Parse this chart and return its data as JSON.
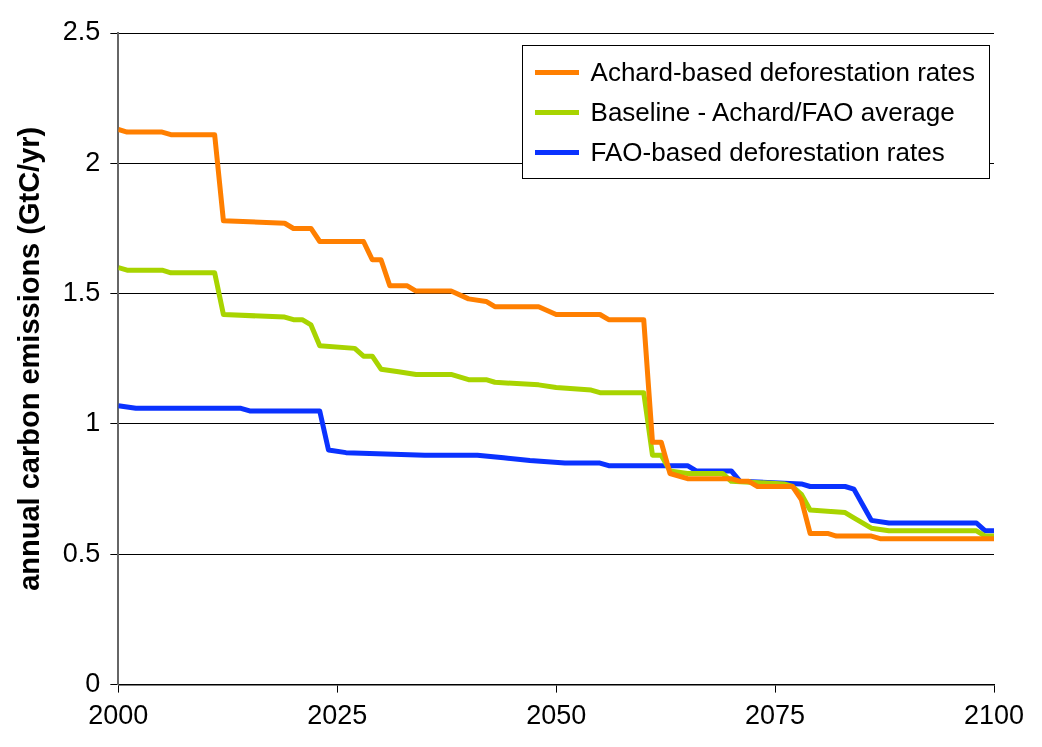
{
  "chart_data": {
    "type": "line",
    "ylabel": "annual carbon emissions (GtC/yr)",
    "xlim": [
      2000,
      2100
    ],
    "xticks": [
      2000,
      2025,
      2050,
      2075,
      2100
    ],
    "ylim": [
      0,
      2.5
    ],
    "yticks": [
      0,
      0.5,
      1,
      1.5,
      2,
      2.5
    ],
    "grid": "y",
    "legend": "top right",
    "marker": "none",
    "line_style": "solid",
    "series": [
      {
        "name": "Achard-based deforestation rates",
        "color": "#ff7f00",
        "x": [
          2000,
          2001,
          2005,
          2006,
          2011,
          2012,
          2019,
          2020,
          2022,
          2023,
          2028,
          2029,
          2030,
          2031,
          2033,
          2034,
          2038,
          2040,
          2042,
          2043,
          2048,
          2050,
          2055,
          2056,
          2060,
          2061,
          2062,
          2063,
          2065,
          2070,
          2071,
          2072,
          2073,
          2077,
          2078,
          2079,
          2081,
          2082,
          2086,
          2087,
          2100
        ],
        "values": [
          2.13,
          2.12,
          2.12,
          2.11,
          2.11,
          1.78,
          1.77,
          1.75,
          1.75,
          1.7,
          1.7,
          1.63,
          1.63,
          1.53,
          1.53,
          1.51,
          1.51,
          1.48,
          1.47,
          1.45,
          1.45,
          1.42,
          1.42,
          1.4,
          1.4,
          0.93,
          0.93,
          0.81,
          0.79,
          0.79,
          0.78,
          0.78,
          0.76,
          0.76,
          0.71,
          0.58,
          0.58,
          0.57,
          0.57,
          0.56,
          0.56
        ]
      },
      {
        "name": "Baseline - Achard/FAO average",
        "color": "#a8d400",
        "x": [
          2000,
          2001,
          2005,
          2006,
          2011,
          2012,
          2019,
          2020,
          2021,
          2022,
          2023,
          2027,
          2028,
          2029,
          2030,
          2032,
          2034,
          2038,
          2040,
          2042,
          2043,
          2048,
          2050,
          2054,
          2055,
          2060,
          2061,
          2062,
          2063,
          2065,
          2069,
          2070,
          2076,
          2077,
          2078,
          2079,
          2083,
          2084,
          2086,
          2088,
          2098,
          2099,
          2100
        ],
        "values": [
          1.6,
          1.59,
          1.59,
          1.58,
          1.58,
          1.42,
          1.41,
          1.4,
          1.4,
          1.38,
          1.3,
          1.29,
          1.26,
          1.26,
          1.21,
          1.2,
          1.19,
          1.19,
          1.17,
          1.17,
          1.16,
          1.15,
          1.14,
          1.13,
          1.12,
          1.12,
          0.88,
          0.88,
          0.82,
          0.81,
          0.81,
          0.78,
          0.77,
          0.76,
          0.73,
          0.67,
          0.66,
          0.64,
          0.6,
          0.59,
          0.59,
          0.57,
          0.57
        ]
      },
      {
        "name": "FAO-based deforestation rates",
        "color": "#0a32ff",
        "x": [
          2000,
          2002,
          2014,
          2015,
          2023,
          2024,
          2026,
          2035,
          2041,
          2044,
          2047,
          2051,
          2055,
          2056,
          2063,
          2065,
          2066,
          2070,
          2071,
          2078,
          2079,
          2083,
          2084,
          2086,
          2088,
          2098,
          2099,
          2100
        ],
        "values": [
          1.07,
          1.06,
          1.06,
          1.05,
          1.05,
          0.9,
          0.89,
          0.88,
          0.88,
          0.87,
          0.86,
          0.85,
          0.85,
          0.84,
          0.84,
          0.84,
          0.82,
          0.82,
          0.78,
          0.77,
          0.76,
          0.76,
          0.75,
          0.63,
          0.62,
          0.62,
          0.59,
          0.59
        ]
      }
    ]
  }
}
